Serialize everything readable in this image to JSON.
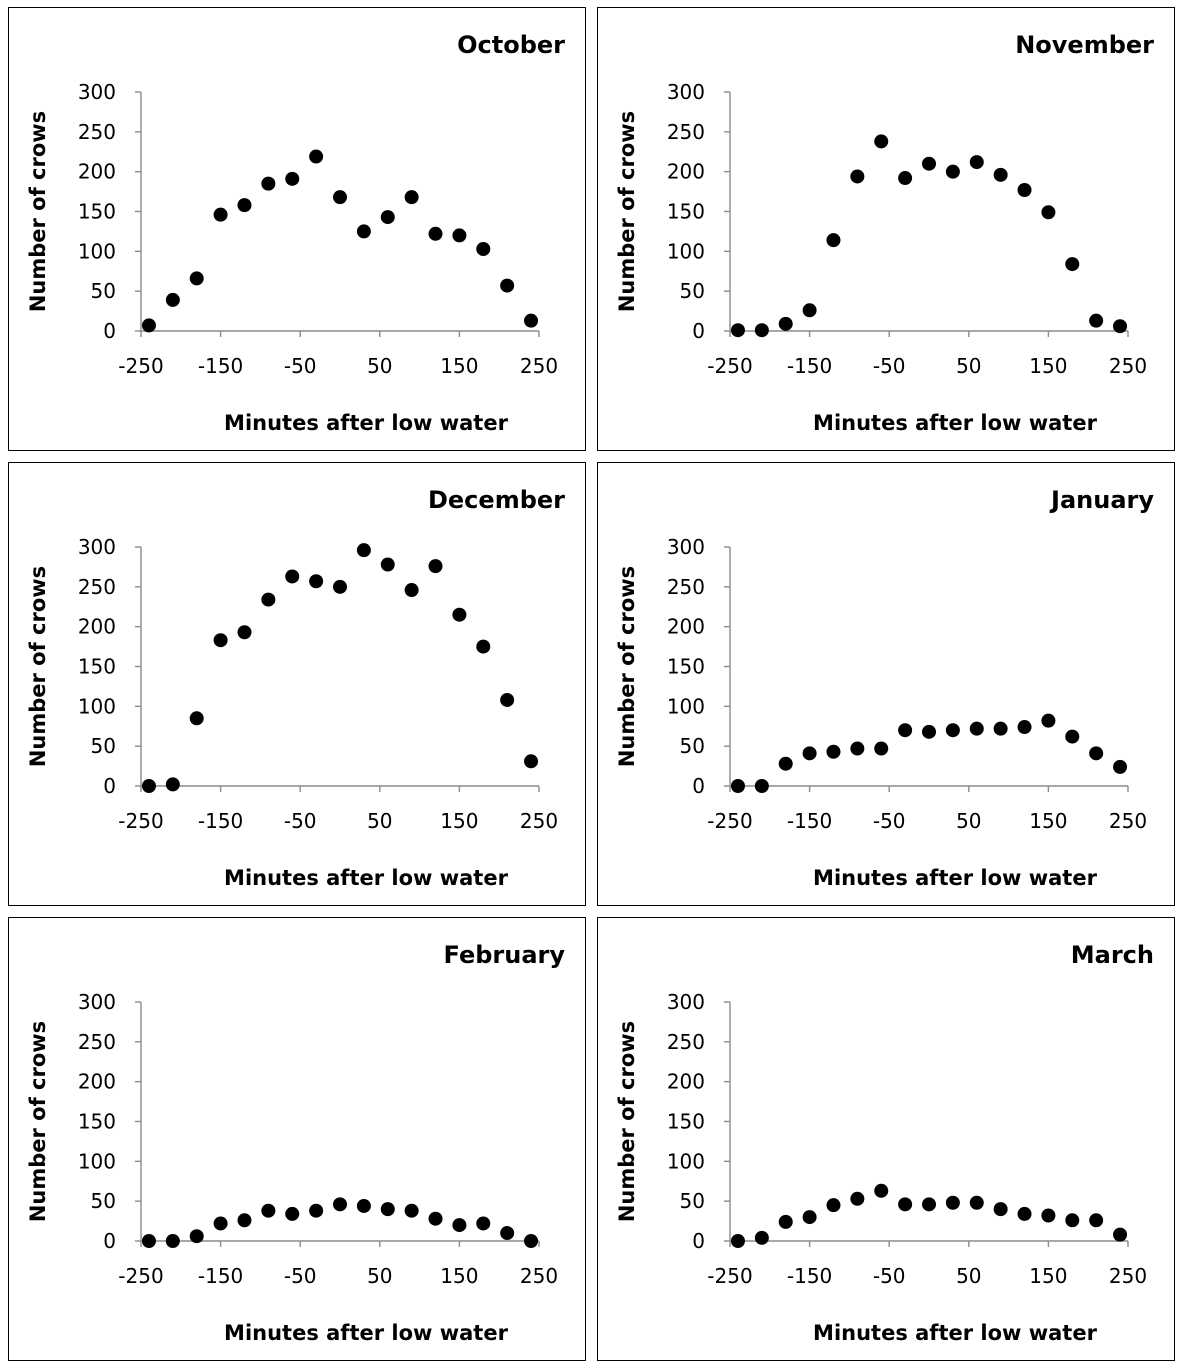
{
  "chart_data": [
    {
      "type": "scatter",
      "title": "October",
      "xlabel": "Minutes after low water",
      "ylabel": "Number of crows",
      "xlim": [
        -250,
        250
      ],
      "ylim": [
        0,
        300
      ],
      "xticks": [
        -250,
        -150,
        -50,
        50,
        150,
        250
      ],
      "yticks": [
        0,
        50,
        100,
        150,
        200,
        250,
        300
      ],
      "grid": false,
      "marker_color": "#000000",
      "x": [
        -240,
        -210,
        -180,
        -150,
        -120,
        -90,
        -60,
        -30,
        0,
        30,
        60,
        90,
        120,
        150,
        180,
        210,
        240
      ],
      "y": [
        7,
        39,
        66,
        146,
        158,
        185,
        191,
        219,
        168,
        125,
        143,
        168,
        122,
        120,
        103,
        57,
        13
      ]
    },
    {
      "type": "scatter",
      "title": "November",
      "xlabel": "Minutes after low water",
      "ylabel": "Number of crows",
      "xlim": [
        -250,
        250
      ],
      "ylim": [
        0,
        300
      ],
      "xticks": [
        -250,
        -150,
        -50,
        50,
        150,
        250
      ],
      "yticks": [
        0,
        50,
        100,
        150,
        200,
        250,
        300
      ],
      "grid": false,
      "marker_color": "#000000",
      "x": [
        -240,
        -210,
        -180,
        -150,
        -120,
        -90,
        -60,
        -30,
        0,
        30,
        60,
        90,
        120,
        150,
        180,
        210,
        240
      ],
      "y": [
        1,
        1,
        9,
        26,
        114,
        194,
        238,
        192,
        210,
        200,
        212,
        196,
        177,
        149,
        84,
        13,
        6
      ]
    },
    {
      "type": "scatter",
      "title": "December",
      "xlabel": "Minutes after low water",
      "ylabel": "Number of crows",
      "xlim": [
        -250,
        250
      ],
      "ylim": [
        0,
        300
      ],
      "xticks": [
        -250,
        -150,
        -50,
        50,
        150,
        250
      ],
      "yticks": [
        0,
        50,
        100,
        150,
        200,
        250,
        300
      ],
      "grid": false,
      "marker_color": "#000000",
      "x": [
        -240,
        -210,
        -180,
        -150,
        -120,
        -90,
        -60,
        -30,
        0,
        30,
        60,
        90,
        120,
        150,
        180,
        210,
        240
      ],
      "y": [
        0,
        2,
        85,
        183,
        193,
        234,
        263,
        257,
        250,
        296,
        278,
        246,
        276,
        215,
        175,
        108,
        31
      ]
    },
    {
      "type": "scatter",
      "title": "January",
      "xlabel": "Minutes after low water",
      "ylabel": "Number of crows",
      "xlim": [
        -250,
        250
      ],
      "ylim": [
        0,
        300
      ],
      "xticks": [
        -250,
        -150,
        -50,
        50,
        150,
        250
      ],
      "yticks": [
        0,
        50,
        100,
        150,
        200,
        250,
        300
      ],
      "grid": false,
      "marker_color": "#000000",
      "x": [
        -240,
        -210,
        -180,
        -150,
        -120,
        -90,
        -60,
        -30,
        0,
        30,
        60,
        90,
        120,
        150,
        180,
        210,
        240
      ],
      "y": [
        0,
        0,
        28,
        41,
        43,
        47,
        47,
        70,
        68,
        70,
        72,
        72,
        74,
        82,
        62,
        41,
        24
      ]
    },
    {
      "type": "scatter",
      "title": "February",
      "xlabel": "Minutes after low water",
      "ylabel": "Number of crows",
      "xlim": [
        -250,
        250
      ],
      "ylim": [
        0,
        300
      ],
      "xticks": [
        -250,
        -150,
        -50,
        50,
        150,
        250
      ],
      "yticks": [
        0,
        50,
        100,
        150,
        200,
        250,
        300
      ],
      "grid": false,
      "marker_color": "#000000",
      "x": [
        -240,
        -210,
        -180,
        -150,
        -120,
        -90,
        -60,
        -30,
        0,
        30,
        60,
        90,
        120,
        150,
        180,
        210,
        240
      ],
      "y": [
        0,
        0,
        6,
        22,
        26,
        38,
        34,
        38,
        46,
        44,
        40,
        38,
        28,
        20,
        22,
        10,
        0
      ]
    },
    {
      "type": "scatter",
      "title": "March",
      "xlabel": "Minutes after low water",
      "ylabel": "Number of crows",
      "xlim": [
        -250,
        250
      ],
      "ylim": [
        0,
        300
      ],
      "xticks": [
        -250,
        -150,
        -50,
        50,
        150,
        250
      ],
      "yticks": [
        0,
        50,
        100,
        150,
        200,
        250,
        300
      ],
      "grid": false,
      "marker_color": "#000000",
      "x": [
        -240,
        -210,
        -180,
        -150,
        -120,
        -90,
        -60,
        -30,
        0,
        30,
        60,
        90,
        120,
        150,
        180,
        210,
        240
      ],
      "y": [
        0,
        4,
        24,
        30,
        45,
        53,
        63,
        46,
        46,
        48,
        48,
        40,
        34,
        32,
        26,
        26,
        8
      ]
    }
  ]
}
